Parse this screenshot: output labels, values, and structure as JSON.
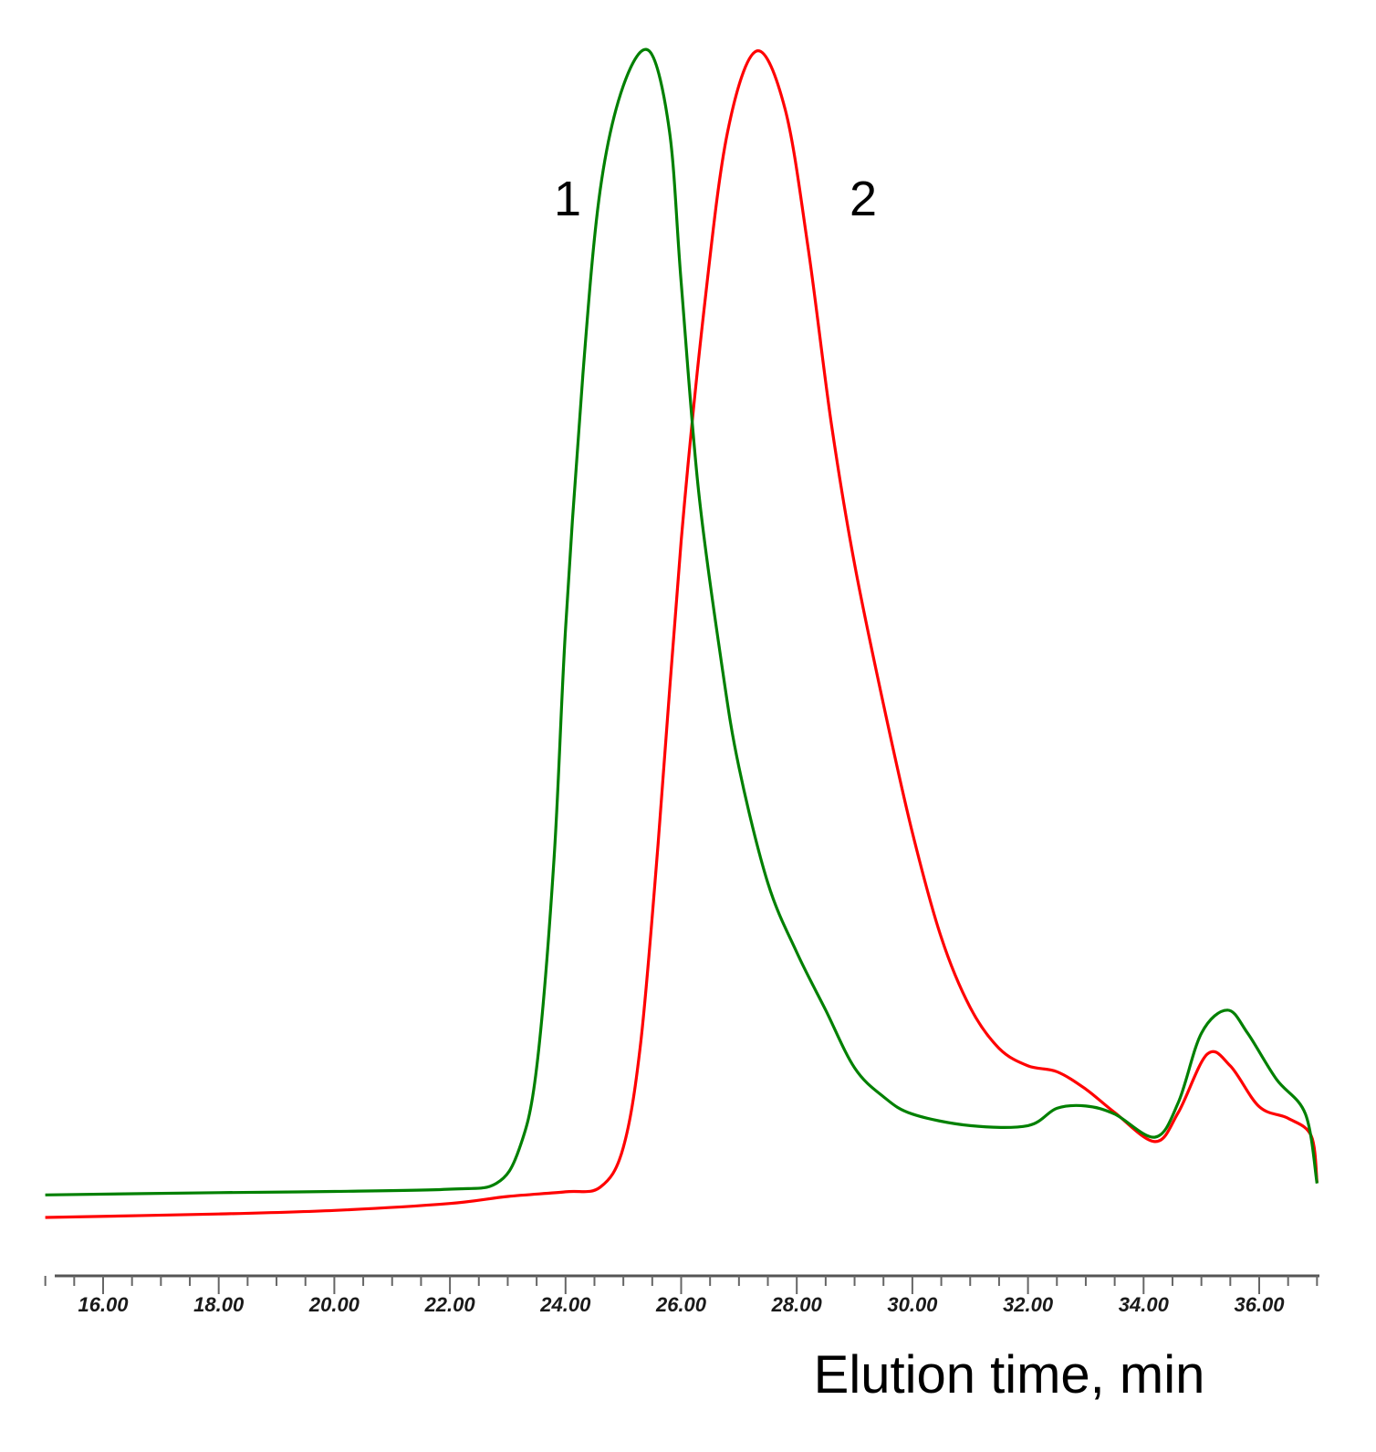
{
  "chart_data": {
    "type": "line",
    "title": "",
    "xlabel": "Elution time, min",
    "ylabel": "",
    "xlim": [
      15.0,
      37.0
    ],
    "x_ticks": [
      "16.00",
      "18.00",
      "20.00",
      "22.00",
      "24.00",
      "26.00",
      "28.00",
      "30.00",
      "32.00",
      "34.00",
      "36.00"
    ],
    "minor_tick_step": 0.5,
    "grid": false,
    "legend": null,
    "annotations": [
      {
        "text": "1",
        "near_series": "1",
        "x": 24.0
      },
      {
        "text": "2",
        "near_series": "2",
        "x": 29.2
      }
    ],
    "series": [
      {
        "name": "1",
        "color": "#008000",
        "peak_x": 25.45,
        "points": [
          [
            15.0,
            0.01
          ],
          [
            18.0,
            0.012
          ],
          [
            20.0,
            0.013
          ],
          [
            22.0,
            0.015
          ],
          [
            22.8,
            0.02
          ],
          [
            23.2,
            0.05
          ],
          [
            23.5,
            0.12
          ],
          [
            23.8,
            0.3
          ],
          [
            24.0,
            0.5
          ],
          [
            24.3,
            0.72
          ],
          [
            24.6,
            0.88
          ],
          [
            25.0,
            0.97
          ],
          [
            25.45,
            1.0
          ],
          [
            25.8,
            0.93
          ],
          [
            26.0,
            0.8
          ],
          [
            26.3,
            0.62
          ],
          [
            26.7,
            0.47
          ],
          [
            27.0,
            0.38
          ],
          [
            27.5,
            0.28
          ],
          [
            28.0,
            0.22
          ],
          [
            28.5,
            0.17
          ],
          [
            29.0,
            0.12
          ],
          [
            29.5,
            0.095
          ],
          [
            30.0,
            0.08
          ],
          [
            31.0,
            0.07
          ],
          [
            32.0,
            0.07
          ],
          [
            32.5,
            0.085
          ],
          [
            33.0,
            0.087
          ],
          [
            33.5,
            0.08
          ],
          [
            34.2,
            0.06
          ],
          [
            34.6,
            0.09
          ],
          [
            35.0,
            0.15
          ],
          [
            35.45,
            0.17
          ],
          [
            35.8,
            0.15
          ],
          [
            36.3,
            0.11
          ],
          [
            36.8,
            0.08
          ],
          [
            37.0,
            0.02
          ]
        ]
      },
      {
        "name": "2",
        "color": "#ff0000",
        "peak_x": 27.3,
        "points": [
          [
            15.0,
            0.0
          ],
          [
            18.0,
            0.003
          ],
          [
            20.0,
            0.006
          ],
          [
            22.0,
            0.012
          ],
          [
            23.0,
            0.018
          ],
          [
            24.0,
            0.022
          ],
          [
            24.6,
            0.026
          ],
          [
            25.0,
            0.06
          ],
          [
            25.3,
            0.15
          ],
          [
            25.6,
            0.32
          ],
          [
            26.0,
            0.58
          ],
          [
            26.4,
            0.78
          ],
          [
            26.8,
            0.93
          ],
          [
            27.3,
            1.0
          ],
          [
            27.8,
            0.95
          ],
          [
            28.2,
            0.83
          ],
          [
            28.6,
            0.68
          ],
          [
            29.0,
            0.56
          ],
          [
            29.5,
            0.44
          ],
          [
            30.0,
            0.33
          ],
          [
            30.5,
            0.24
          ],
          [
            31.0,
            0.18
          ],
          [
            31.5,
            0.145
          ],
          [
            32.0,
            0.13
          ],
          [
            32.5,
            0.125
          ],
          [
            33.0,
            0.11
          ],
          [
            33.5,
            0.09
          ],
          [
            34.2,
            0.065
          ],
          [
            34.6,
            0.09
          ],
          [
            35.1,
            0.14
          ],
          [
            35.5,
            0.13
          ],
          [
            36.0,
            0.095
          ],
          [
            36.5,
            0.085
          ],
          [
            36.9,
            0.07
          ],
          [
            37.0,
            0.03
          ]
        ]
      }
    ]
  }
}
